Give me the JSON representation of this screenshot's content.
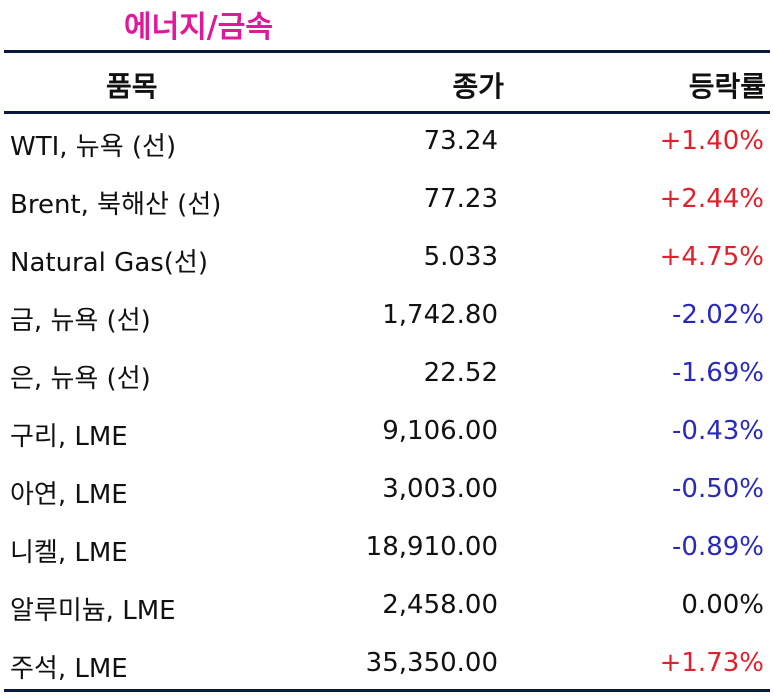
{
  "title": "에너지/금속",
  "headers": {
    "item": "품목",
    "close": "종가",
    "change": "등락률"
  },
  "rows": [
    {
      "item": "WTI, 뉴욕 (선)",
      "close": "73.24",
      "change": "+1.40%",
      "dir": "up"
    },
    {
      "item": "Brent, 북해산 (선)",
      "close": "77.23",
      "change": "+2.44%",
      "dir": "up"
    },
    {
      "item": "Natural Gas(선)",
      "close": "5.033",
      "change": "+4.75%",
      "dir": "up"
    },
    {
      "item": "금, 뉴욕  (선)",
      "close": "1,742.80",
      "change": "-2.02%",
      "dir": "down"
    },
    {
      "item": "은, 뉴욕  (선)",
      "close": "22.52",
      "change": "-1.69%",
      "dir": "down"
    },
    {
      "item": "구리, LME",
      "close": "9,106.00",
      "change": "-0.43%",
      "dir": "down"
    },
    {
      "item": "아연, LME",
      "close": "3,003.00",
      "change": "-0.50%",
      "dir": "down"
    },
    {
      "item": "니켈, LME",
      "close": "18,910.00",
      "change": "-0.89%",
      "dir": "down"
    },
    {
      "item": "알루미늄, LME",
      "close": "2,458.00",
      "change": "0.00%",
      "dir": "flat"
    },
    {
      "item": "주석, LME",
      "close": "35,350.00",
      "change": "+1.73%",
      "dir": "up"
    }
  ],
  "colors": {
    "title": "#e0189b",
    "rule": "#0b1a3c",
    "up": "#e0202a",
    "down": "#2a2ab8",
    "flat": "#111111"
  }
}
